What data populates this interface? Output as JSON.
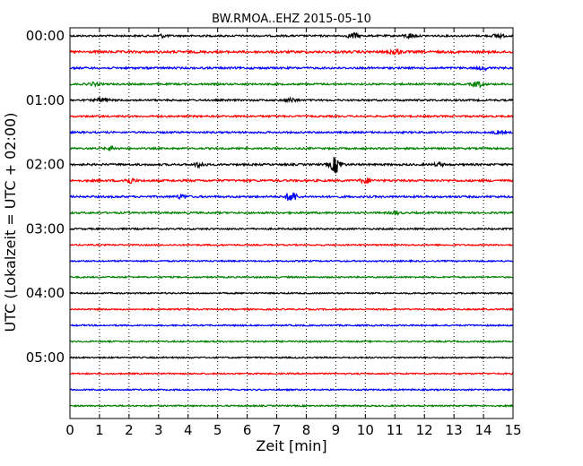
{
  "chart_data": {
    "type": "line",
    "title": "BW.RMOA..EHZ 2015-05-10",
    "xlabel": "Zeit  [min]",
    "ylabel": "UTC (Lokalzeit = UTC + 02:00)",
    "xlim": [
      0,
      15
    ],
    "x_ticks": [
      "0",
      "1",
      "2",
      "3",
      "4",
      "5",
      "6",
      "7",
      "8",
      "9",
      "10",
      "11",
      "12",
      "13",
      "14",
      "15"
    ],
    "y_tick_labels": [
      "00:00",
      "01:00",
      "02:00",
      "03:00",
      "04:00",
      "05:00"
    ],
    "grid": "vertical dotted",
    "trace_colors": [
      "#000000",
      "#ff0000",
      "#0000ff",
      "#008000"
    ],
    "traces_count_note": "",
    "series": [
      {
        "start": "00:00",
        "color": "#000000",
        "amplitude": 1.0,
        "events": [
          [
            3.1,
            1.5
          ],
          [
            9.6,
            3.0
          ],
          [
            11.5,
            2.5
          ],
          [
            14.5,
            2.0
          ]
        ]
      },
      {
        "start": "00:15",
        "color": "#ff0000",
        "amplitude": 1.3,
        "events": [
          [
            11.0,
            3.0
          ]
        ]
      },
      {
        "start": "00:30",
        "color": "#0000ff",
        "amplitude": 1.1,
        "events": [
          [
            14.0,
            1.5
          ]
        ]
      },
      {
        "start": "00:45",
        "color": "#008000",
        "amplitude": 1.0,
        "events": [
          [
            0.8,
            1.5
          ],
          [
            13.8,
            3.0
          ]
        ]
      },
      {
        "start": "01:00",
        "color": "#000000",
        "amplitude": 1.0,
        "events": [
          [
            1.1,
            3.0
          ],
          [
            7.5,
            2.0
          ]
        ]
      },
      {
        "start": "01:15",
        "color": "#ff0000",
        "amplitude": 1.0,
        "events": []
      },
      {
        "start": "01:30",
        "color": "#0000ff",
        "amplitude": 1.0,
        "events": [
          [
            14.5,
            1.5
          ]
        ]
      },
      {
        "start": "01:45",
        "color": "#008000",
        "amplitude": 1.0,
        "events": [
          [
            1.4,
            2.0
          ]
        ]
      },
      {
        "start": "02:00",
        "color": "#000000",
        "amplitude": 1.1,
        "events": [
          [
            4.4,
            2.5
          ],
          [
            9.0,
            9.0
          ],
          [
            12.5,
            1.5
          ]
        ]
      },
      {
        "start": "02:15",
        "color": "#ff0000",
        "amplitude": 1.2,
        "events": [
          [
            2.0,
            3.0
          ],
          [
            10.0,
            2.5
          ]
        ]
      },
      {
        "start": "02:30",
        "color": "#0000ff",
        "amplitude": 1.1,
        "events": [
          [
            3.8,
            2.0
          ],
          [
            7.5,
            6.0
          ]
        ]
      },
      {
        "start": "02:45",
        "color": "#008000",
        "amplitude": 1.0,
        "events": [
          [
            11.0,
            1.5
          ]
        ]
      },
      {
        "start": "03:00",
        "color": "#000000",
        "amplitude": 0.9,
        "events": []
      },
      {
        "start": "03:15",
        "color": "#ff0000",
        "amplitude": 0.8,
        "events": []
      },
      {
        "start": "03:30",
        "color": "#0000ff",
        "amplitude": 0.8,
        "events": []
      },
      {
        "start": "03:45",
        "color": "#008000",
        "amplitude": 0.8,
        "events": []
      },
      {
        "start": "04:00",
        "color": "#000000",
        "amplitude": 0.8,
        "events": []
      },
      {
        "start": "04:15",
        "color": "#ff0000",
        "amplitude": 0.8,
        "events": []
      },
      {
        "start": "04:30",
        "color": "#0000ff",
        "amplitude": 0.8,
        "events": []
      },
      {
        "start": "04:45",
        "color": "#008000",
        "amplitude": 0.8,
        "events": []
      },
      {
        "start": "05:00",
        "color": "#000000",
        "amplitude": 0.8,
        "events": []
      },
      {
        "start": "05:15",
        "color": "#ff0000",
        "amplitude": 0.8,
        "events": []
      },
      {
        "start": "05:30",
        "color": "#0000ff",
        "amplitude": 0.8,
        "events": []
      },
      {
        "start": "05:45",
        "color": "#008000",
        "amplitude": 0.8,
        "events": []
      }
    ]
  }
}
